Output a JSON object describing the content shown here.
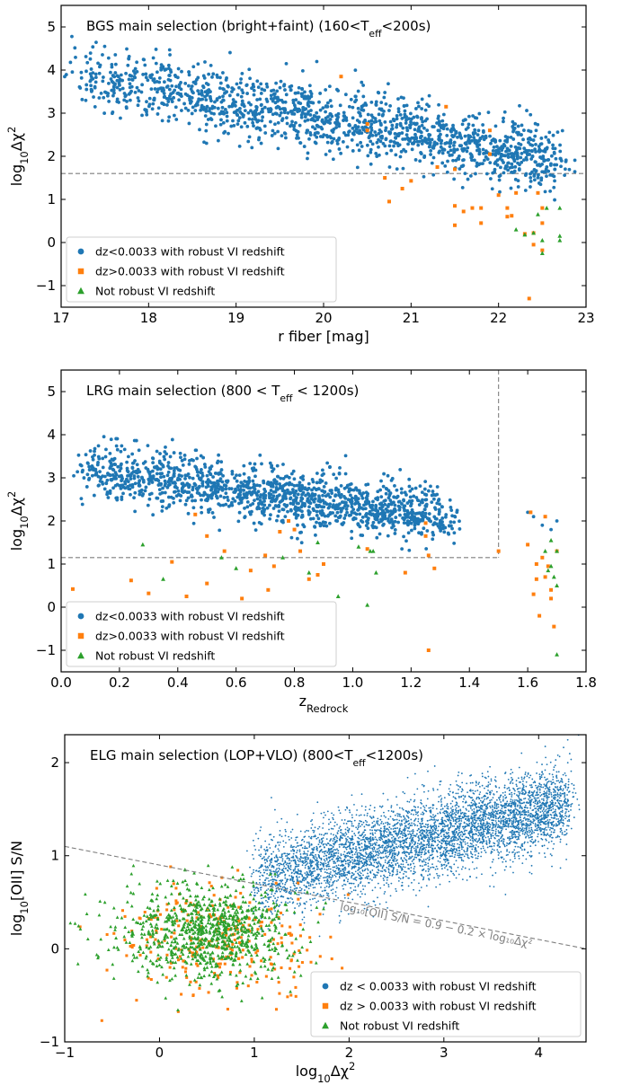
{
  "colors": {
    "blue": "#1f77b4",
    "orange": "#ff7f0e",
    "green": "#2ca02c",
    "ref": "#7f7f7f"
  },
  "chart_data": [
    {
      "id": "bgs",
      "type": "scatter",
      "title": "BGS main selection (bright+faint) (160<T",
      "title_sub": "eff",
      "title_tail": "<200s)",
      "xlabel": "r fiber [mag]",
      "ylabel_main": "log",
      "ylabel_sub": "10",
      "ylabel_tail": "Δχ",
      "ylabel_sup": "2",
      "xlim": [
        17,
        23
      ],
      "ylim": [
        -1.5,
        5.5
      ],
      "xticks": [
        17,
        18,
        19,
        20,
        21,
        22,
        23
      ],
      "yticks": [
        -1,
        0,
        1,
        2,
        3,
        4,
        5
      ],
      "grid": false,
      "legend_position": "lower-left",
      "hline": 1.6,
      "series": [
        {
          "name": "dz<0.0033 with robust VI redshift",
          "marker": "circle",
          "color": "#1f77b4",
          "trend": {
            "x_start": 17.2,
            "x_end": 22.7,
            "y_start": 3.9,
            "y_end": 1.9,
            "scatter": 0.38,
            "count": 1500
          }
        },
        {
          "name": "dz>0.0033 with robust VI redshift",
          "marker": "square",
          "color": "#ff7f0e",
          "points": [
            [
              20.2,
              3.85
            ],
            [
              20.5,
              2.75
            ],
            [
              20.5,
              2.6
            ],
            [
              20.7,
              1.5
            ],
            [
              20.75,
              0.95
            ],
            [
              20.9,
              1.25
            ],
            [
              21.0,
              1.43
            ],
            [
              21.4,
              3.15
            ],
            [
              21.3,
              1.75
            ],
            [
              21.5,
              1.7
            ],
            [
              21.5,
              0.85
            ],
            [
              21.5,
              0.4
            ],
            [
              21.7,
              0.8
            ],
            [
              21.8,
              0.8
            ],
            [
              21.8,
              0.45
            ],
            [
              21.9,
              2.05
            ],
            [
              21.9,
              2.6
            ],
            [
              22.0,
              1.1
            ],
            [
              22.1,
              0.8
            ],
            [
              22.2,
              1.15
            ],
            [
              22.1,
              0.6
            ],
            [
              22.15,
              0.62
            ],
            [
              22.3,
              0.2
            ],
            [
              22.4,
              0.22
            ],
            [
              22.4,
              -0.05
            ],
            [
              22.45,
              1.15
            ],
            [
              22.5,
              0.45
            ],
            [
              22.5,
              0.8
            ],
            [
              22.5,
              -0.18
            ],
            [
              22.35,
              -1.3
            ],
            [
              21.6,
              0.72
            ]
          ]
        },
        {
          "name": "Not robust VI redshift",
          "marker": "triangle",
          "color": "#2ca02c",
          "points": [
            [
              22.2,
              0.3
            ],
            [
              22.3,
              0.18
            ],
            [
              22.4,
              0.22
            ],
            [
              22.45,
              0.65
            ],
            [
              22.5,
              0.05
            ],
            [
              22.5,
              -0.25
            ],
            [
              22.55,
              0.8
            ],
            [
              22.7,
              0.8
            ],
            [
              22.7,
              0.15
            ],
            [
              22.7,
              0.05
            ]
          ]
        }
      ]
    },
    {
      "id": "lrg",
      "type": "scatter",
      "title": "LRG main selection (800 < T",
      "title_sub": "eff",
      "title_tail": " < 1200s)",
      "xlabel_main": "z",
      "xlabel_sub": "Redrock",
      "ylabel_main": "log",
      "ylabel_sub": "10",
      "ylabel_tail": "Δχ",
      "ylabel_sup": "2",
      "xlim": [
        0.0,
        1.8
      ],
      "ylim": [
        -1.5,
        5.5
      ],
      "xticks": [
        0.0,
        0.2,
        0.4,
        0.6,
        0.8,
        1.0,
        1.2,
        1.4,
        1.6,
        1.8
      ],
      "yticks": [
        -1,
        0,
        1,
        2,
        3,
        4,
        5
      ],
      "grid": false,
      "legend_position": "lower-left",
      "hline": 1.15,
      "vline": 1.5,
      "series": [
        {
          "name": "dz<0.0033 with robust VI redshift",
          "marker": "circle",
          "color": "#1f77b4",
          "trend": {
            "x_start": 0.07,
            "x_end": 1.33,
            "y_start": 3.2,
            "y_end": 2.05,
            "scatter": 0.32,
            "count": 1400
          },
          "extra_points": [
            [
              1.6,
              2.2
            ],
            [
              1.62,
              2.1
            ],
            [
              1.65,
              1.9
            ],
            [
              1.68,
              1.8
            ],
            [
              1.7,
              2.0
            ]
          ]
        },
        {
          "name": "dz>0.0033 with robust VI redshift",
          "marker": "square",
          "color": "#ff7f0e",
          "points": [
            [
              0.04,
              0.42
            ],
            [
              0.16,
              -0.38
            ],
            [
              0.24,
              0.62
            ],
            [
              0.3,
              0.32
            ],
            [
              0.38,
              1.05
            ],
            [
              0.43,
              0.25
            ],
            [
              0.46,
              2.15
            ],
            [
              0.5,
              0.55
            ],
            [
              0.5,
              1.65
            ],
            [
              0.56,
              1.3
            ],
            [
              0.62,
              0.2
            ],
            [
              0.65,
              0.85
            ],
            [
              0.7,
              1.2
            ],
            [
              0.71,
              0.4
            ],
            [
              0.73,
              0.95
            ],
            [
              0.75,
              1.75
            ],
            [
              0.78,
              2.0
            ],
            [
              0.8,
              1.8
            ],
            [
              0.82,
              1.3
            ],
            [
              0.85,
              0.65
            ],
            [
              0.88,
              0.75
            ],
            [
              0.9,
              1.0
            ],
            [
              1.05,
              1.35
            ],
            [
              1.18,
              0.8
            ],
            [
              1.25,
              1.95
            ],
            [
              1.25,
              1.65
            ],
            [
              1.26,
              1.2
            ],
            [
              1.28,
              0.9
            ],
            [
              1.26,
              -1.0
            ],
            [
              1.5,
              1.3
            ],
            [
              1.6,
              1.45
            ],
            [
              1.61,
              2.2
            ],
            [
              1.62,
              0.3
            ],
            [
              1.63,
              0.65
            ],
            [
              1.64,
              -0.2
            ],
            [
              1.65,
              1.15
            ],
            [
              1.66,
              2.1
            ],
            [
              1.66,
              0.7
            ],
            [
              1.67,
              0.95
            ],
            [
              1.68,
              0.4
            ],
            [
              1.68,
              0.2
            ],
            [
              1.69,
              -0.45
            ],
            [
              1.7,
              1.3
            ],
            [
              1.63,
              1.0
            ]
          ]
        },
        {
          "name": "Not robust VI redshift",
          "marker": "triangle",
          "color": "#2ca02c",
          "points": [
            [
              0.28,
              1.45
            ],
            [
              0.55,
              1.15
            ],
            [
              0.6,
              0.9
            ],
            [
              0.76,
              1.15
            ],
            [
              0.85,
              0.8
            ],
            [
              0.88,
              1.5
            ],
            [
              0.95,
              0.25
            ],
            [
              1.02,
              1.4
            ],
            [
              1.05,
              0.05
            ],
            [
              1.08,
              0.8
            ],
            [
              1.07,
              1.3
            ],
            [
              1.06,
              1.3
            ],
            [
              0.35,
              0.65
            ],
            [
              1.68,
              1.55
            ],
            [
              1.7,
              1.3
            ],
            [
              1.68,
              0.95
            ],
            [
              1.69,
              0.7
            ],
            [
              1.7,
              0.5
            ],
            [
              1.7,
              -1.1
            ],
            [
              1.66,
              1.3
            ],
            [
              1.67,
              0.85
            ]
          ]
        }
      ]
    },
    {
      "id": "elg",
      "type": "scatter",
      "title": "ELG main selection (LOP+VLO) (800<T",
      "title_sub": "eff",
      "title_tail": "<1200s)",
      "xlabel_main": "log",
      "xlabel_sub": "10",
      "xlabel_tail": "Δχ",
      "xlabel_sup": "2",
      "ylabel_main": "log",
      "ylabel_sub": "10",
      "ylabel_tail": "[OII] S/N",
      "xlim": [
        -1.0,
        4.5
      ],
      "ylim": [
        -1.0,
        2.3
      ],
      "xticks": [
        -1,
        0,
        1,
        2,
        3,
        4
      ],
      "yticks": [
        -1,
        0,
        1,
        2
      ],
      "grid": false,
      "legend_position": "lower-right",
      "cut_line": {
        "intercept": 0.9,
        "slope": -0.2
      },
      "annotation": "log₁₀[OII] S/N = 0.9 − 0.2 × log₁₀Δχ²",
      "series": [
        {
          "name": "dz < 0.0033 with robust VI redshift",
          "marker": "circle",
          "color": "#1f77b4",
          "trend": {
            "x_start": 1.0,
            "x_end": 4.3,
            "y_start": 0.75,
            "y_end": 1.55,
            "scatter": 0.22,
            "count": 5000
          }
        },
        {
          "name": "dz > 0.0033 with robust VI redshift",
          "marker": "square",
          "color": "#ff7f0e",
          "cloud": {
            "x_center": 0.6,
            "y_center": 0.1,
            "x_spread": 0.75,
            "y_spread": 0.38,
            "count": 260
          }
        },
        {
          "name": "Not robust VI redshift",
          "marker": "triangle",
          "color": "#2ca02c",
          "cloud": {
            "x_center": 0.5,
            "y_center": 0.2,
            "x_spread": 0.65,
            "y_spread": 0.32,
            "count": 900
          }
        }
      ]
    }
  ]
}
